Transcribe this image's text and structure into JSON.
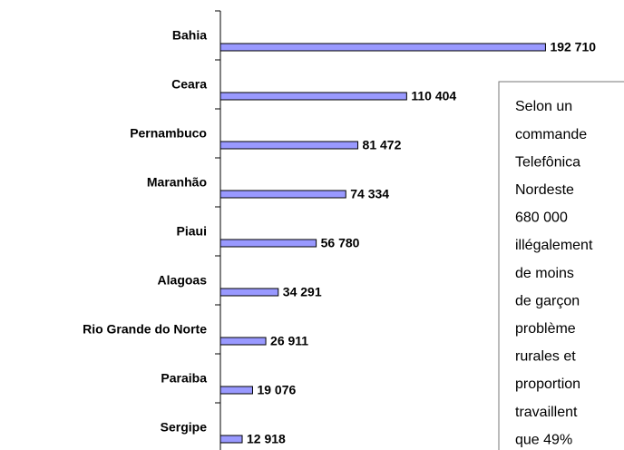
{
  "chart_data": {
    "type": "barh",
    "categories": [
      "Bahia",
      "Ceara",
      "Pernambuco",
      "Maranhão",
      "Piaui",
      "Alagoas",
      "Rio Grande do Norte",
      "Paraiba",
      "Sergipe"
    ],
    "values": [
      192710,
      110404,
      81472,
      74334,
      56780,
      34291,
      26911,
      19076,
      12918
    ],
    "value_labels": [
      "192 710",
      "110 404",
      "81 472",
      "74 334",
      "56 780",
      "34 291",
      "26 911",
      "19 076",
      "12 918"
    ],
    "color": "#9999ff",
    "xlim": [
      0,
      200000
    ],
    "annotation": [
      "Selon un",
      "commande",
      "Telefônica",
      "Nordeste",
      "680 000",
      "illégalement",
      "de moins",
      "de garçon",
      "problème",
      "rurales et",
      "proportion",
      "travaillent",
      "que 49%"
    ]
  }
}
